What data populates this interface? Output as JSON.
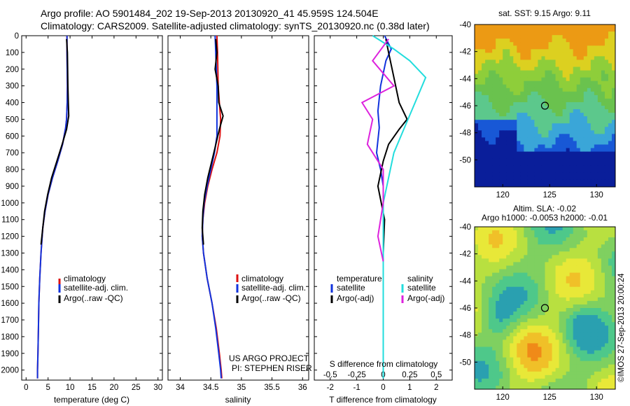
{
  "header": {
    "line1": "Argo profile: AO 5901484_202 19-Sep-2013 20130920_41 45.959S 124.504E",
    "line2": "Climatology: CARS2009. Satellite-adjusted climatology: synTS_20130920.nc (0.38d later)"
  },
  "colors": {
    "climatology": "#dd1111",
    "satellite": "#1133dd",
    "argo": "#000000",
    "salinity_satellite": "#22dddd",
    "salinity_argo": "#dd22dd"
  },
  "chart_data": [
    {
      "type": "line",
      "id": "temperature",
      "xlabel": "temperature (deg C)",
      "ylabel": "",
      "xlim": [
        -1,
        31
      ],
      "ylim": [
        2060,
        0
      ],
      "x_ticks": [
        0,
        5,
        10,
        15,
        20,
        25,
        30
      ],
      "y_ticks": [
        0,
        100,
        200,
        300,
        400,
        500,
        600,
        700,
        800,
        900,
        1000,
        1100,
        1200,
        1300,
        1400,
        1500,
        1600,
        1700,
        1800,
        1900,
        2000
      ],
      "legend": [
        "climatology",
        "satellite-adj. clim.",
        "Argo(..raw -QC)"
      ],
      "legend_position": "bottom-right",
      "series": [
        {
          "name": "climatology",
          "color": "#dd1111",
          "x": [
            9.3,
            9.3,
            9.4,
            9.35,
            9.2,
            9.0,
            8.3,
            7.2,
            6.0,
            5.0,
            4.3,
            3.8,
            3.4,
            3.1,
            2.9,
            2.8,
            2.7,
            2.6,
            2.6
          ],
          "y": [
            0,
            100,
            300,
            400,
            500,
            550,
            650,
            750,
            850,
            950,
            1050,
            1150,
            1300,
            1450,
            1600,
            1750,
            1900,
            2000,
            2050
          ]
        },
        {
          "name": "satellite-adj. clim.",
          "color": "#1133dd",
          "x": [
            9.3,
            9.3,
            9.4,
            9.35,
            9.2,
            9.0,
            8.3,
            7.2,
            6.0,
            5.0,
            4.3,
            3.8,
            3.4,
            3.1,
            2.9,
            2.8,
            2.7,
            2.6,
            2.6
          ],
          "y": [
            0,
            100,
            300,
            400,
            500,
            550,
            650,
            750,
            850,
            950,
            1050,
            1150,
            1300,
            1450,
            1600,
            1750,
            1900,
            2000,
            2050
          ]
        },
        {
          "name": "Argo(..raw -QC)",
          "color": "#000000",
          "x": [
            9.2,
            9.4,
            9.5,
            9.6,
            9.7,
            9.2,
            8.2,
            7.0,
            5.8,
            4.9,
            4.2,
            3.8,
            3.4
          ],
          "y": [
            20,
            100,
            300,
            400,
            480,
            560,
            650,
            750,
            850,
            950,
            1050,
            1150,
            1250
          ]
        }
      ]
    },
    {
      "type": "line",
      "id": "salinity",
      "xlabel": "salinity",
      "ylabel": "",
      "xlim": [
        33.8,
        36.1
      ],
      "ylim": [
        2060,
        0
      ],
      "x_ticks": [
        34,
        34.5,
        35,
        35.5,
        36
      ],
      "legend": [
        "climatology",
        "satellite-adj. clim.",
        "Argo(..raw -QC)"
      ],
      "legend_position": "bottom-right",
      "annotation": [
        "US ARGO PROJECT",
        "PI: STEPHEN RISER"
      ],
      "series": [
        {
          "name": "climatology",
          "color": "#dd1111",
          "x": [
            34.6,
            34.61,
            34.62,
            34.64,
            34.66,
            34.65,
            34.6,
            34.52,
            34.45,
            34.4,
            34.37,
            34.36,
            34.38,
            34.44,
            34.52,
            34.59,
            34.64,
            34.67,
            34.68
          ],
          "y": [
            0,
            100,
            300,
            400,
            500,
            600,
            700,
            800,
            900,
            1000,
            1100,
            1200,
            1300,
            1450,
            1600,
            1750,
            1900,
            2000,
            2050
          ]
        },
        {
          "name": "satellite-adj. clim.",
          "color": "#1133dd",
          "x": [
            34.57,
            34.58,
            34.6,
            34.6,
            34.6,
            34.6,
            34.56,
            34.5,
            34.44,
            34.39,
            34.37,
            34.36,
            34.38,
            34.44,
            34.52,
            34.58,
            34.63,
            34.66,
            34.67
          ],
          "y": [
            0,
            100,
            300,
            400,
            500,
            600,
            700,
            800,
            900,
            1000,
            1100,
            1200,
            1300,
            1450,
            1600,
            1750,
            1900,
            2000,
            2050
          ]
        },
        {
          "name": "Argo(..raw -QC)",
          "color": "#000000",
          "x": [
            34.58,
            34.6,
            34.57,
            34.62,
            34.63,
            34.7,
            34.64,
            34.55,
            34.45,
            34.4,
            34.37,
            34.36,
            34.38
          ],
          "y": [
            20,
            100,
            200,
            300,
            400,
            480,
            560,
            700,
            850,
            950,
            1050,
            1150,
            1250
          ]
        }
      ]
    },
    {
      "type": "line",
      "id": "difference",
      "xlabel": "T difference from climatology",
      "xlabel_top": "S difference from climatology",
      "ylabel": "",
      "xlim": [
        -2.6,
        2.6
      ],
      "ylim": [
        2060,
        0
      ],
      "x_ticks": [
        -2,
        -1,
        0,
        1,
        2
      ],
      "s_ticks": [
        -0.5,
        -0.25,
        0,
        0.25,
        0.5
      ],
      "legend_temperature": {
        "title": "temperature",
        "entries": [
          "satellite",
          "Argo(-adj)"
        ]
      },
      "legend_salinity": {
        "title": "salinity",
        "entries": [
          "satellite",
          "Argo(-adj)"
        ]
      },
      "series": [
        {
          "name": "temperature satellite",
          "color": "#1133dd",
          "x": [
            0.05,
            0.3,
            0.1,
            -0.1,
            -0.2,
            -0.15,
            -0.25,
            -0.1,
            0,
            0,
            0
          ],
          "y": [
            0,
            80,
            150,
            300,
            450,
            550,
            700,
            800,
            900,
            1400,
            2050
          ]
        },
        {
          "name": "temperature Argo(-adj)",
          "color": "#000000",
          "x": [
            0.1,
            0.2,
            0.4,
            0.6,
            0.9,
            0.6,
            0.2,
            0,
            -0.2,
            0.05,
            0
          ],
          "y": [
            20,
            100,
            250,
            400,
            500,
            560,
            650,
            750,
            900,
            1100,
            1300
          ]
        },
        {
          "name": "salinity satellite",
          "color": "#22dddd",
          "x": [
            -0.1,
            0.1,
            0.25,
            0.4,
            0.3,
            0.2,
            0.1,
            0.05,
            0,
            0,
            0
          ],
          "y": [
            0,
            80,
            150,
            250,
            400,
            550,
            700,
            850,
            1000,
            1400,
            2050
          ]
        },
        {
          "name": "salinity Argo(-adj)",
          "color": "#dd22dd",
          "x": [
            0.05,
            -0.1,
            0.1,
            -0.2,
            -0.1,
            -0.15,
            0,
            0,
            -0.05,
            0
          ],
          "y": [
            20,
            150,
            300,
            400,
            500,
            650,
            800,
            1000,
            1200,
            1350
          ]
        }
      ]
    },
    {
      "type": "heatmap",
      "id": "sst_map",
      "title": "sat. SST: 9.15 Argo: 9.11",
      "x_ticks": [
        120,
        125,
        130
      ],
      "y_ticks": [
        -40,
        -42,
        -44,
        -46,
        -48,
        -50
      ],
      "xlim": [
        117,
        132
      ],
      "ylim": [
        -52,
        -40
      ],
      "marker": {
        "lon": 124.5,
        "lat": -46.0
      },
      "palette": [
        "#0a1e9a",
        "#1858d6",
        "#3aa6d8",
        "#5cc88c",
        "#6ac24e",
        "#8ece3a",
        "#dcd020",
        "#ec9a14"
      ]
    },
    {
      "type": "heatmap",
      "id": "sla_map",
      "title": "Altim. SLA: -0.02",
      "subtitle": "Argo h1000: -0.0053 h2000: -0.01",
      "x_ticks": [
        120,
        125,
        130
      ],
      "y_ticks": [
        -40,
        -42,
        -44,
        -46,
        -48,
        -50
      ],
      "xlim": [
        117,
        132
      ],
      "ylim": [
        -52,
        -40
      ],
      "marker": {
        "lon": 124.5,
        "lat": -46.0
      },
      "palette": [
        "#2aa0b0",
        "#4ec88a",
        "#7fd060",
        "#b8e040",
        "#e8e838",
        "#f0c028",
        "#f08a18"
      ]
    }
  ],
  "side_note": "©IMOS 27-Sep-2013 20:00:24"
}
